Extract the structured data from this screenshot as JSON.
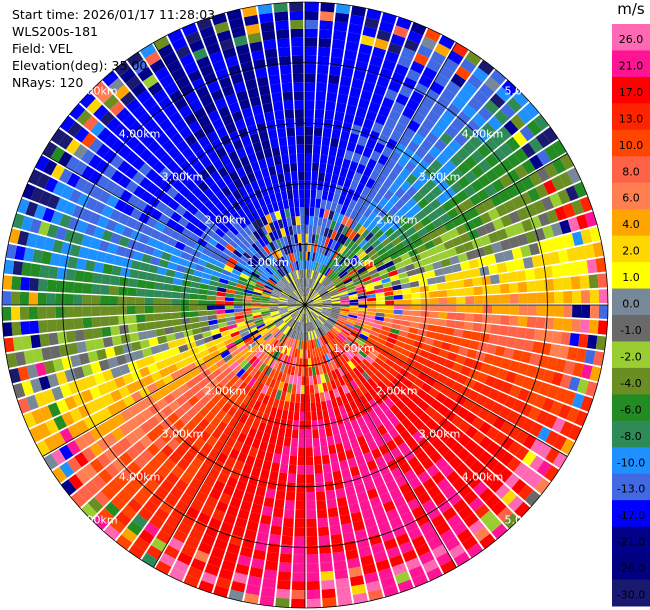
{
  "header": {
    "start_time": "Start time: 2026/01/17 11:28:03",
    "site": "WLS200s-181",
    "field": "Field: VEL",
    "elevation": "Elevation(deg): 35.00",
    "nrays": "NRays: 120"
  },
  "chart_data": {
    "type": "ppi",
    "field": "VEL",
    "units": "m/s",
    "nrays": 120,
    "max_range_km": 5.0,
    "range_ring_labels": [
      "1.00km",
      "2.00km",
      "3.00km",
      "4.00km",
      "5.00km"
    ],
    "range_rings_km": [
      1,
      2,
      3,
      4,
      5
    ],
    "radial_spokes_deg": [
      0,
      30,
      60,
      90,
      120,
      150,
      180,
      210,
      240,
      270,
      300,
      330
    ],
    "velocity_pattern": {
      "max_outbound_ms": 22,
      "outbound_direction_deg": 165,
      "max_inbound_ms": -17,
      "inbound_direction_deg": 345,
      "noisy_near_range_km": 1.6
    },
    "colorbar": {
      "title": "m/s",
      "tick_labels": [
        "26.0",
        "21.0",
        "17.0",
        "13.0",
        "10.0",
        "8.0",
        "6.0",
        "4.0",
        "2.0",
        "1.0",
        "0.0",
        "-1.0",
        "-2.0",
        "-4.0",
        "-6.0",
        "-8.0",
        "-10.0",
        "-13.0",
        "-17.0",
        "-21.0",
        "-26.0",
        "-30.0"
      ],
      "boundaries": [
        30,
        26,
        21,
        17,
        13,
        10,
        8,
        6,
        4,
        2,
        1,
        0,
        -1,
        -2,
        -4,
        -6,
        -8,
        -10,
        -13,
        -17,
        -21,
        -26,
        -30
      ],
      "colors": [
        "#ff69b4",
        "#ff1493",
        "#ff0000",
        "#ff2400",
        "#ff4500",
        "#ff6347",
        "#ff7f50",
        "#ffa500",
        "#ffd700",
        "#ffff00",
        "#778899",
        "#696969",
        "#9acd32",
        "#6b8e23",
        "#228b22",
        "#2e8b57",
        "#1e90ff",
        "#4169e1",
        "#0000ff",
        "#00008b",
        "#000080",
        "#191970"
      ]
    }
  }
}
